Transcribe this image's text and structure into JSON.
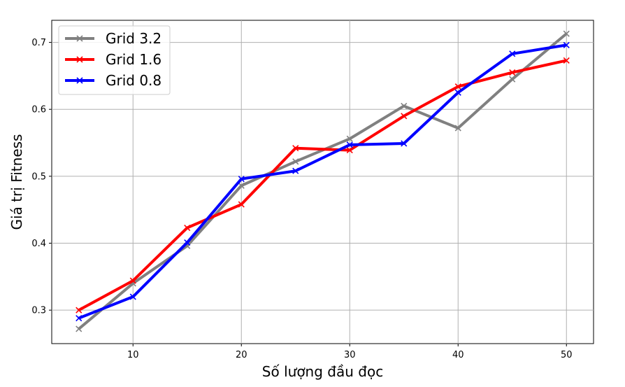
{
  "chart_data": {
    "type": "line",
    "title": "",
    "xlabel": "Số lượng đầu đọc",
    "ylabel": "Giá trị Fitness",
    "xlim": [
      2.5,
      52.5
    ],
    "ylim": [
      0.25,
      0.733
    ],
    "x_ticks": [
      10,
      20,
      30,
      40,
      50
    ],
    "y_ticks": [
      0.3,
      0.4,
      0.5,
      0.6,
      0.7
    ],
    "grid": true,
    "legend_position": "top-left",
    "x": [
      5,
      10,
      15,
      20,
      25,
      30,
      35,
      40,
      45,
      50
    ],
    "series": [
      {
        "name": "Grid 3.2",
        "color": "#808080",
        "marker": "x",
        "values": [
          0.272,
          0.34,
          0.396,
          0.486,
          0.522,
          0.556,
          0.605,
          0.572,
          0.645,
          0.713
        ]
      },
      {
        "name": "Grid 1.6",
        "color": "#ff0000",
        "marker": "x",
        "values": [
          0.3,
          0.344,
          0.423,
          0.458,
          0.542,
          0.539,
          0.59,
          0.634,
          0.655,
          0.673
        ]
      },
      {
        "name": "Grid 0.8",
        "color": "#0000ff",
        "marker": "x",
        "values": [
          0.288,
          0.32,
          0.401,
          0.496,
          0.508,
          0.547,
          0.549,
          0.625,
          0.683,
          0.696
        ]
      }
    ]
  }
}
